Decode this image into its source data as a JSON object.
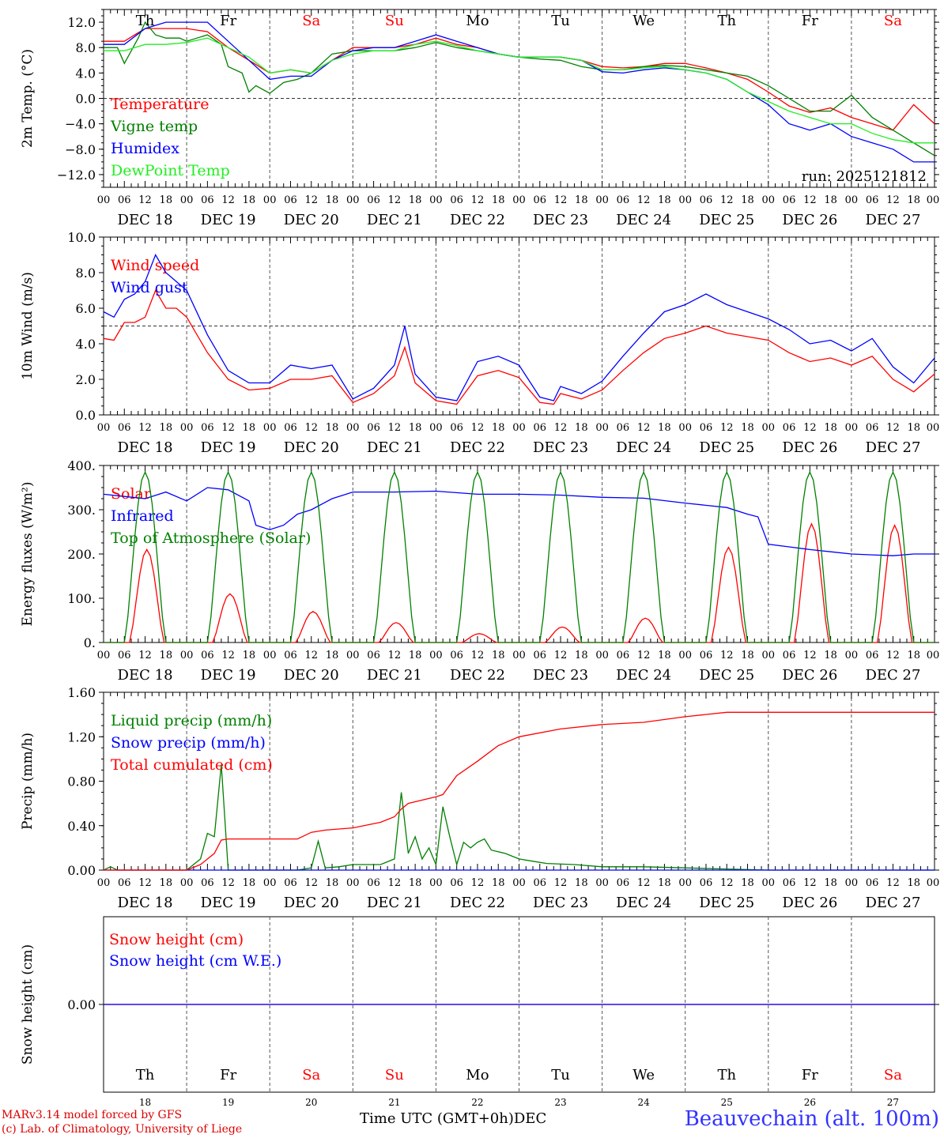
{
  "footer": {
    "model_line": "MARv3.14 model forced by GFS",
    "lab_line": "(c) Lab. of Climatology, University of Liege",
    "time_axis_label": "Time UTC (GMT+0h)",
    "month_label": "DEC",
    "station": "Beauvechain (alt. 100m)"
  },
  "days": [
    {
      "abbr": "Th",
      "date": "DEC 18",
      "num": "18",
      "weekend": false
    },
    {
      "abbr": "Fr",
      "date": "DEC 19",
      "num": "19",
      "weekend": false
    },
    {
      "abbr": "Sa",
      "date": "DEC 20",
      "num": "20",
      "weekend": true
    },
    {
      "abbr": "Su",
      "date": "DEC 21",
      "num": "21",
      "weekend": true
    },
    {
      "abbr": "Mo",
      "date": "DEC 22",
      "num": "22",
      "weekend": false
    },
    {
      "abbr": "Tu",
      "date": "DEC 23",
      "num": "23",
      "weekend": false
    },
    {
      "abbr": "We",
      "date": "DEC 24",
      "num": "24",
      "weekend": false
    },
    {
      "abbr": "Th",
      "date": "DEC 25",
      "num": "25",
      "weekend": false
    },
    {
      "abbr": "Fr",
      "date": "DEC 26",
      "num": "26",
      "weekend": false
    },
    {
      "abbr": "Sa",
      "date": "DEC 27",
      "num": "27",
      "weekend": true
    }
  ],
  "hour_ticks": [
    "00",
    "06",
    "12",
    "18"
  ],
  "final_hour_tick": "00",
  "colors": {
    "red": "#ff0000",
    "green": "#008000",
    "blue": "#0000ff",
    "lightgreen": "#22ee22",
    "weekend": "#ff0000",
    "axis": "#000000"
  },
  "chart_data": [
    {
      "type": "line",
      "id": "temp",
      "ylabel": "2m Temp. (°C)",
      "ylim": [
        -14,
        14
      ],
      "ticks": [
        12,
        8,
        4,
        0,
        -4,
        -8,
        -12
      ],
      "tick_labels": [
        "12.0",
        "8.0",
        "4.0",
        "0.0",
        "−4.0",
        "−8.0",
        "−12.0"
      ],
      "ref_line": 0,
      "x_unit": "hours since DEC 18 00 UTC",
      "annotation": "run: 2025121812",
      "series": [
        {
          "name": "Temperature",
          "color": "#ff0000",
          "x": [
            0,
            6,
            9,
            12,
            18,
            24,
            30,
            36,
            42,
            48,
            54,
            60,
            66,
            72,
            78,
            84,
            90,
            96,
            102,
            108,
            114,
            120,
            126,
            132,
            138,
            144,
            150,
            156,
            162,
            168,
            174,
            180,
            186,
            192,
            198,
            204,
            210,
            216,
            222,
            228,
            234,
            240
          ],
          "y": [
            9,
            9,
            10,
            11,
            11,
            11,
            10.5,
            8,
            6,
            4,
            4.5,
            4,
            6,
            8,
            8,
            8,
            8.5,
            9.5,
            8.5,
            8,
            7,
            6.5,
            6.5,
            6.5,
            6,
            5,
            4.8,
            5,
            5.5,
            5.5,
            4.8,
            4,
            3,
            1,
            -1.2,
            -2.2,
            -1.5,
            -3,
            -4,
            -5,
            -1,
            -4
          ]
        },
        {
          "name": "Vigne temp",
          "color": "#008000",
          "x": [
            0,
            4,
            6,
            10,
            12,
            15,
            18,
            22,
            24,
            30,
            34,
            36,
            40,
            42,
            44,
            48,
            52,
            56,
            60,
            66,
            72,
            78,
            84,
            90,
            96,
            102,
            108,
            114,
            120,
            126,
            132,
            138,
            144,
            150,
            156,
            162,
            168,
            174,
            180,
            186,
            192,
            198,
            204,
            210,
            216,
            222,
            228,
            234,
            240
          ],
          "y": [
            8,
            8,
            5.5,
            9.5,
            12,
            10,
            9.5,
            9.5,
            9,
            10,
            8.5,
            5,
            4,
            1,
            2,
            0.8,
            2.5,
            3,
            4,
            7,
            7.5,
            7.5,
            7.5,
            8,
            8.8,
            8,
            7.5,
            7,
            6.5,
            6.2,
            6,
            5,
            4.5,
            4.5,
            5,
            5.2,
            5,
            4.5,
            4,
            3.5,
            2,
            0,
            -2,
            -2,
            0.5,
            -3,
            -5,
            -7,
            -9
          ]
        },
        {
          "name": "Humidex",
          "color": "#0000ff",
          "x": [
            0,
            6,
            12,
            18,
            24,
            30,
            36,
            42,
            48,
            54,
            60,
            66,
            72,
            78,
            84,
            90,
            96,
            102,
            108,
            114,
            120,
            126,
            132,
            138,
            144,
            150,
            156,
            162,
            168,
            174,
            180,
            186,
            192,
            198,
            204,
            210,
            216,
            222,
            228,
            234,
            240
          ],
          "y": [
            8.5,
            8.5,
            11,
            12,
            12,
            12,
            9,
            6,
            3,
            3.5,
            3.5,
            6,
            7.5,
            8,
            8,
            9,
            10,
            9,
            8,
            7,
            6.5,
            6.5,
            6.5,
            6,
            4.2,
            4,
            4.5,
            4.8,
            4.5,
            4,
            3,
            1,
            -1,
            -4,
            -5,
            -4,
            -6,
            -7,
            -8,
            -10,
            -10
          ]
        },
        {
          "name": "DewPoint Temp",
          "color": "#22ee22",
          "x": [
            0,
            6,
            12,
            18,
            24,
            30,
            36,
            42,
            48,
            54,
            60,
            66,
            72,
            78,
            84,
            90,
            96,
            102,
            108,
            114,
            120,
            126,
            132,
            138,
            144,
            150,
            156,
            162,
            168,
            174,
            180,
            186,
            192,
            198,
            204,
            210,
            216,
            222,
            228,
            234,
            240
          ],
          "y": [
            7.5,
            7.5,
            8.5,
            8.5,
            8.8,
            9.5,
            8,
            6.5,
            4,
            4.5,
            4,
            6,
            7,
            7.5,
            7.5,
            8.5,
            9,
            8.3,
            7.5,
            7,
            6.5,
            6.5,
            6.5,
            6,
            4.5,
            4.5,
            4.8,
            5,
            4.5,
            4,
            3,
            1,
            -0.5,
            -2,
            -3,
            -4,
            -4,
            -5.5,
            -6.5,
            -7,
            -7
          ]
        }
      ]
    },
    {
      "type": "line",
      "id": "wind",
      "ylabel": "10m Wind (m/s)",
      "ylim": [
        0,
        10
      ],
      "ticks": [
        10,
        8,
        6,
        4,
        2,
        0
      ],
      "tick_labels": [
        "10.0",
        "8.0",
        "6.0",
        "4.0",
        "2.0",
        "0.0"
      ],
      "ref_line": 5,
      "x_unit": "hours since DEC 18 00 UTC",
      "series": [
        {
          "name": "Wind speed",
          "color": "#ff0000",
          "x": [
            0,
            3,
            6,
            9,
            12,
            15,
            18,
            21,
            24,
            30,
            36,
            42,
            48,
            54,
            60,
            66,
            72,
            78,
            84,
            87,
            90,
            96,
            102,
            108,
            114,
            120,
            126,
            130,
            132,
            138,
            144,
            150,
            156,
            162,
            168,
            174,
            180,
            186,
            192,
            198,
            204,
            210,
            216,
            222,
            228,
            234,
            240
          ],
          "y": [
            4.3,
            4.2,
            5.2,
            5.2,
            5.5,
            7,
            6,
            6,
            5.5,
            3.5,
            2,
            1.4,
            1.5,
            2,
            2,
            2.2,
            0.7,
            1.2,
            2.2,
            3.8,
            1.8,
            0.8,
            0.6,
            2.2,
            2.5,
            2.1,
            0.7,
            0.6,
            1.2,
            0.9,
            1.4,
            2.5,
            3.5,
            4.3,
            4.6,
            5,
            4.6,
            4.4,
            4.2,
            3.5,
            3,
            3.2,
            2.8,
            3.3,
            2,
            1.3,
            2.3
          ]
        },
        {
          "name": "Wind gust",
          "color": "#0000ff",
          "x": [
            0,
            3,
            6,
            9,
            12,
            15,
            18,
            21,
            24,
            30,
            36,
            42,
            48,
            54,
            60,
            66,
            72,
            78,
            84,
            87,
            90,
            96,
            102,
            108,
            114,
            120,
            126,
            130,
            132,
            138,
            144,
            150,
            156,
            162,
            168,
            174,
            180,
            186,
            192,
            198,
            204,
            210,
            216,
            222,
            228,
            234,
            240
          ],
          "y": [
            5.8,
            5.5,
            6.5,
            6.8,
            7.5,
            9,
            8,
            7.5,
            7,
            4.5,
            2.5,
            1.8,
            1.8,
            2.8,
            2.6,
            2.8,
            0.9,
            1.5,
            2.8,
            5,
            2.3,
            1,
            0.8,
            3,
            3.3,
            2.8,
            1,
            0.8,
            1.6,
            1.2,
            1.9,
            3.3,
            4.6,
            5.8,
            6.2,
            6.8,
            6.2,
            5.8,
            5.4,
            4.8,
            4,
            4.2,
            3.6,
            4.3,
            2.7,
            1.8,
            3.2
          ]
        }
      ]
    },
    {
      "type": "line",
      "id": "energy",
      "ylabel": "Energy fluxes (W/m²)",
      "ylim": [
        0,
        400
      ],
      "ticks": [
        400,
        300,
        200,
        100,
        0
      ],
      "tick_labels": [
        "400.",
        "300.",
        "200.",
        "100.",
        "0."
      ],
      "ref_line": null,
      "x_unit": "hours since DEC 18 00 UTC",
      "series": [
        {
          "name": "Solar",
          "color": "#ff0000",
          "peak_hour": 12.5,
          "half_width": 4,
          "daily_peaks": [
            210,
            110,
            70,
            45,
            20,
            35,
            55,
            215,
            268,
            265
          ]
        },
        {
          "name": "Infrared",
          "color": "#0000ff",
          "x": [
            0,
            6,
            12,
            18,
            24,
            30,
            36,
            42,
            44,
            48,
            52,
            56,
            60,
            66,
            72,
            84,
            96,
            108,
            120,
            132,
            144,
            156,
            168,
            180,
            186,
            189,
            192,
            198,
            204,
            210,
            216,
            222,
            228,
            234,
            240
          ],
          "y": [
            335,
            330,
            325,
            340,
            320,
            350,
            345,
            320,
            265,
            255,
            265,
            290,
            300,
            325,
            340,
            340,
            342,
            335,
            335,
            333,
            328,
            326,
            315,
            305,
            290,
            284,
            222,
            216,
            210,
            205,
            200,
            198,
            196,
            200,
            200
          ]
        },
        {
          "name": "Top of Atmosphere (Solar)",
          "color": "#008000",
          "peak_hour": 12,
          "half_width": 5,
          "daily_peaks": [
            385,
            385,
            385,
            385,
            385,
            385,
            385,
            385,
            385,
            385
          ]
        }
      ]
    },
    {
      "type": "line",
      "id": "precip",
      "ylabel": "Precip (mm/h)",
      "ylim": [
        0,
        1.6
      ],
      "ticks": [
        1.6,
        1.2,
        0.8,
        0.4,
        0
      ],
      "tick_labels": [
        "1.60",
        "1.20",
        "0.80",
        "0.40",
        "0.00"
      ],
      "ref_line": null,
      "x_unit": "hours since DEC 18 00 UTC",
      "series": [
        {
          "name": "Liquid precip (mm/h)",
          "color": "#008000",
          "x": [
            0,
            2,
            4,
            24,
            28,
            30,
            32,
            34,
            36,
            38,
            40,
            56,
            60,
            62,
            64,
            68,
            72,
            80,
            84,
            86,
            88,
            90,
            92,
            94,
            96,
            98,
            100,
            102,
            104,
            106,
            108,
            110,
            112,
            116,
            120,
            124,
            128,
            136,
            144,
            156,
            168,
            180,
            192,
            240
          ],
          "y": [
            0,
            0.03,
            0,
            0,
            0.1,
            0.33,
            0.3,
            0.95,
            0,
            0,
            0,
            0,
            0.02,
            0.26,
            0.02,
            0.03,
            0.05,
            0.05,
            0.1,
            0.7,
            0.15,
            0.3,
            0.1,
            0.2,
            0.05,
            0.57,
            0.3,
            0.05,
            0.25,
            0.2,
            0.25,
            0.28,
            0.18,
            0.15,
            0.1,
            0.08,
            0.06,
            0.05,
            0.03,
            0.03,
            0.02,
            0.01,
            0,
            0
          ]
        },
        {
          "name": "Snow precip (mm/h)",
          "color": "#0000ff",
          "x": [
            0,
            240
          ],
          "y": [
            0,
            0
          ]
        },
        {
          "name": "Total cumulated (cm)",
          "color": "#ff0000",
          "x": [
            0,
            24,
            28,
            32,
            34,
            36,
            48,
            56,
            60,
            64,
            72,
            80,
            84,
            86,
            88,
            96,
            98,
            102,
            108,
            114,
            120,
            132,
            144,
            156,
            168,
            180,
            240
          ],
          "y": [
            0,
            0,
            0.05,
            0.15,
            0.27,
            0.28,
            0.28,
            0.28,
            0.34,
            0.36,
            0.38,
            0.43,
            0.48,
            0.55,
            0.6,
            0.66,
            0.68,
            0.85,
            0.98,
            1.12,
            1.2,
            1.27,
            1.31,
            1.33,
            1.38,
            1.42,
            1.42
          ]
        }
      ]
    },
    {
      "type": "line",
      "id": "snow",
      "ylabel": "Snow height (cm)",
      "ylim": [
        -1,
        1
      ],
      "ticks": [
        0
      ],
      "tick_labels": [
        "0.00"
      ],
      "ref_line": null,
      "x_unit": "hours since DEC 18 00 UTC",
      "series": [
        {
          "name": "Snow height (cm)",
          "color": "#ff0000",
          "x": [
            0,
            240
          ],
          "y": [
            0,
            0
          ]
        },
        {
          "name": "Snow height (cm W.E.)",
          "color": "#0000ff",
          "x": [
            0,
            240
          ],
          "y": [
            0,
            0
          ]
        }
      ]
    }
  ]
}
